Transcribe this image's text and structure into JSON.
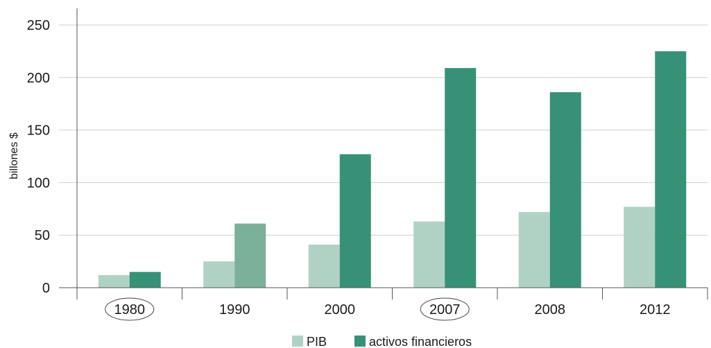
{
  "chart_data": {
    "type": "bar",
    "ylabel": "billones $",
    "ylim": [
      0,
      250
    ],
    "yticks": [
      0,
      50,
      100,
      150,
      200,
      250
    ],
    "grid": true,
    "legend_position": "bottom-center",
    "categories": [
      "1980",
      "1990",
      "2000",
      "2007",
      "2008",
      "2012"
    ],
    "circled_categories": [
      "1980",
      "2007"
    ],
    "series": [
      {
        "name": "PIB",
        "color": "#b0d2c5",
        "values": [
          12,
          25,
          41,
          63,
          72,
          77
        ]
      },
      {
        "name": "activos financieros",
        "color": "#369177",
        "values": [
          15,
          61,
          127,
          209,
          186,
          225
        ]
      }
    ],
    "highlight_color": "#7bb09a",
    "highlight_points": [
      {
        "series": 1,
        "category": "1990"
      }
    ]
  }
}
